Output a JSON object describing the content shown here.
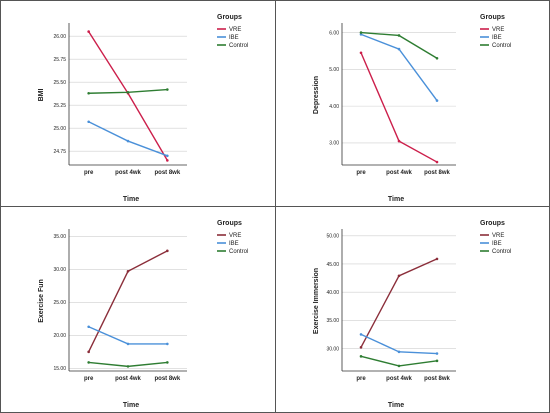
{
  "chart_data": [
    {
      "type": "line",
      "categories": [
        "pre",
        "post 4wk",
        "post 8wk"
      ],
      "xlabel": "Time",
      "ylabel": "BMI",
      "ylim": [
        24.6,
        26.1
      ],
      "yticks": [
        "26.00",
        "25.75",
        "25.50",
        "25.25",
        "25.00",
        "24.75"
      ],
      "grid": "horizontal",
      "legend_title": "Groups",
      "legend_position": "right",
      "series": [
        {
          "name": "VRE",
          "color": "#cc1f4b",
          "values": [
            26.05,
            25.38,
            24.65
          ]
        },
        {
          "name": "IBE",
          "color": "#4a90d9",
          "values": [
            25.07,
            24.86,
            24.7
          ]
        },
        {
          "name": "Control",
          "color": "#2e7d32",
          "values": [
            25.38,
            25.39,
            25.42
          ]
        }
      ]
    },
    {
      "type": "line",
      "categories": [
        "pre",
        "post 4wk",
        "post 8wk"
      ],
      "xlabel": "Time",
      "ylabel": "Depression",
      "ylim": [
        2.4,
        6.15
      ],
      "yticks": [
        "6.00",
        "5.00",
        "4.00",
        "3.00"
      ],
      "grid": "horizontal",
      "legend_title": "Groups",
      "legend_position": "right",
      "series": [
        {
          "name": "VRE",
          "color": "#cc1f4b",
          "values": [
            5.45,
            3.05,
            2.48
          ]
        },
        {
          "name": "IBE",
          "color": "#4a90d9",
          "values": [
            5.95,
            5.55,
            4.15
          ]
        },
        {
          "name": "Control",
          "color": "#2e7d32",
          "values": [
            6.0,
            5.92,
            5.3
          ]
        }
      ]
    },
    {
      "type": "line",
      "categories": [
        "pre",
        "post 4wk",
        "post 8wk"
      ],
      "xlabel": "Time",
      "ylabel": "Exercise Fun",
      "ylim": [
        14.6,
        35.5
      ],
      "yticks": [
        "35.00",
        "30.00",
        "25.00",
        "20.00",
        "15.00"
      ],
      "grid": "horizontal",
      "legend_title": "Groups",
      "legend_position": "right",
      "series": [
        {
          "name": "VRE",
          "color": "#8b2e3a",
          "values": [
            17.5,
            29.7,
            32.8
          ]
        },
        {
          "name": "IBE",
          "color": "#4a90d9",
          "values": [
            21.3,
            18.7,
            18.7
          ]
        },
        {
          "name": "Control",
          "color": "#2e7d32",
          "values": [
            15.9,
            15.3,
            15.9
          ]
        }
      ]
    },
    {
      "type": "line",
      "categories": [
        "pre",
        "post 4wk",
        "post 8wk"
      ],
      "xlabel": "Time",
      "ylabel": "Exercise Immersion",
      "ylim": [
        26.0,
        50.5
      ],
      "yticks": [
        "50.00",
        "45.00",
        "40.00",
        "35.00",
        "30.00"
      ],
      "grid": "horizontal",
      "legend_title": "Groups",
      "legend_position": "right",
      "series": [
        {
          "name": "VRE",
          "color": "#8b2e3a",
          "values": [
            30.2,
            42.9,
            45.9
          ]
        },
        {
          "name": "IBE",
          "color": "#4a90d9",
          "values": [
            32.5,
            29.4,
            29.1
          ]
        },
        {
          "name": "Control",
          "color": "#2e7d32",
          "values": [
            28.6,
            26.9,
            27.8
          ]
        }
      ]
    }
  ]
}
